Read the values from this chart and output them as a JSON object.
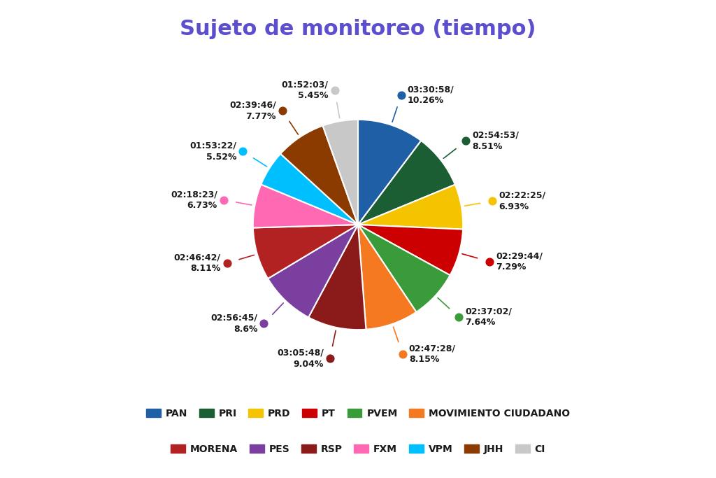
{
  "title": "Sujeto de monitoreo (tiempo)",
  "title_color": "#5B4FCF",
  "title_fontsize": 22,
  "slices": [
    {
      "label": "PAN",
      "time": "03:30:58",
      "pct": 10.26,
      "color": "#1F5FA6"
    },
    {
      "label": "PRI",
      "time": "02:54:53",
      "pct": 8.51,
      "color": "#1B5E33"
    },
    {
      "label": "PRD",
      "time": "02:22:25",
      "pct": 6.93,
      "color": "#F5C400"
    },
    {
      "label": "PT",
      "time": "02:29:44",
      "pct": 7.29,
      "color": "#CC0000"
    },
    {
      "label": "PVEM",
      "time": "02:37:02",
      "pct": 7.64,
      "color": "#3A9B3A"
    },
    {
      "label": "MOVIMIENTO CIUDADANO",
      "time": "02:47:28",
      "pct": 8.15,
      "color": "#F47920"
    },
    {
      "label": "RSP",
      "time": "03:05:48",
      "pct": 9.04,
      "color": "#8B1A1A"
    },
    {
      "label": "PES",
      "time": "02:56:45",
      "pct": 8.6,
      "color": "#7B3FA0"
    },
    {
      "label": "MORENA",
      "time": "02:46:42",
      "pct": 8.11,
      "color": "#B22222"
    },
    {
      "label": "FXM",
      "time": "02:18:23",
      "pct": 6.73,
      "color": "#FF69B4"
    },
    {
      "label": "VPM",
      "time": "01:53:22",
      "pct": 5.52,
      "color": "#00BFFF"
    },
    {
      "label": "JHH",
      "time": "02:39:46",
      "pct": 7.77,
      "color": "#8B3A00"
    },
    {
      "label": "CI",
      "time": "01:52:03",
      "pct": 5.45,
      "color": "#C8C8C8"
    }
  ],
  "legend_row1": [
    "PAN",
    "PRI",
    "PRD",
    "PT",
    "PVEM",
    "MOVIMIENTO CIUDADANO"
  ],
  "legend_row2": [
    "MORENA",
    "PES",
    "RSP",
    "FXM",
    "VPM",
    "JHH",
    "CI"
  ],
  "background_color": "#FFFFFF",
  "label_fontsize": 9.0,
  "label_color": "#1A1A1A",
  "dot_size": 60
}
